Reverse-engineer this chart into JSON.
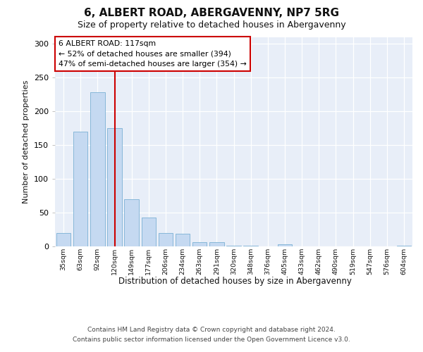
{
  "title": "6, ALBERT ROAD, ABERGAVENNY, NP7 5RG",
  "subtitle": "Size of property relative to detached houses in Abergavenny",
  "xlabel": "Distribution of detached houses by size in Abergavenny",
  "ylabel": "Number of detached properties",
  "categories": [
    "35sqm",
    "63sqm",
    "92sqm",
    "120sqm",
    "149sqm",
    "177sqm",
    "206sqm",
    "234sqm",
    "263sqm",
    "291sqm",
    "320sqm",
    "348sqm",
    "376sqm",
    "405sqm",
    "433sqm",
    "462sqm",
    "490sqm",
    "519sqm",
    "547sqm",
    "576sqm",
    "604sqm"
  ],
  "values": [
    20,
    170,
    228,
    175,
    70,
    43,
    20,
    19,
    6,
    6,
    1,
    1,
    0,
    3,
    0,
    0,
    0,
    0,
    0,
    0,
    1
  ],
  "bar_color": "#c5d9f1",
  "bar_edge_color": "#7ab0d4",
  "vline_index": 3,
  "vline_color": "#cc0000",
  "annotation_line1": "6 ALBERT ROAD: 117sqm",
  "annotation_line2": "← 52% of detached houses are smaller (394)",
  "annotation_line3": "47% of semi-detached houses are larger (354) →",
  "annotation_box_facecolor": "#ffffff",
  "annotation_box_edgecolor": "#cc0000",
  "ylim_max": 310,
  "yticks": [
    0,
    50,
    100,
    150,
    200,
    250,
    300
  ],
  "plot_bg_color": "#e8eef8",
  "footer_line1": "Contains HM Land Registry data © Crown copyright and database right 2024.",
  "footer_line2": "Contains public sector information licensed under the Open Government Licence v3.0."
}
